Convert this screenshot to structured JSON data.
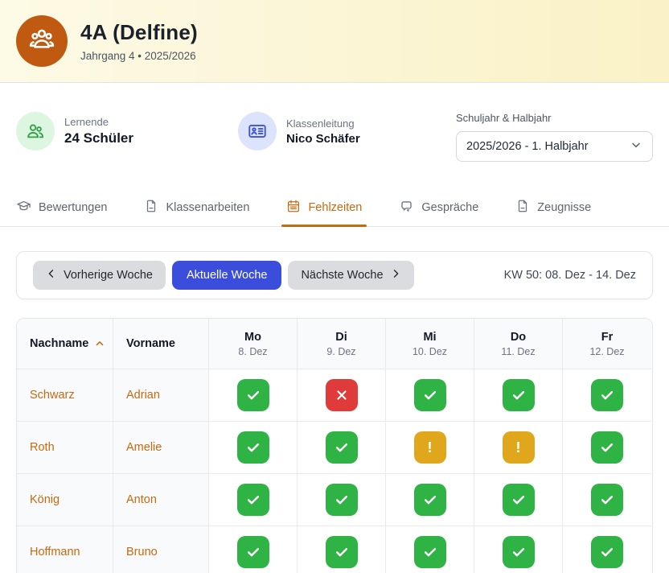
{
  "header": {
    "title": "4A (Delfine)",
    "subtitle": "Jahrgang 4 • 2025/2026"
  },
  "info": {
    "students": {
      "label": "Lernende",
      "value": "24 Schüler"
    },
    "teacher": {
      "label": "Klassenleitung",
      "value": "Nico Schäfer"
    },
    "term": {
      "label": "Schuljahr & Halbjahr",
      "selected": "2025/2026 - 1. Halbjahr"
    }
  },
  "tabs": [
    {
      "label": "Bewertungen",
      "icon": "graduation-cap-icon",
      "active": false
    },
    {
      "label": "Klassenarbeiten",
      "icon": "document-icon",
      "active": false
    },
    {
      "label": "Fehlzeiten",
      "icon": "calendar-icon",
      "active": true
    },
    {
      "label": "Gespräche",
      "icon": "chat-bubbles-icon",
      "active": false
    },
    {
      "label": "Zeugnisse",
      "icon": "certificate-icon",
      "active": false
    }
  ],
  "week_nav": {
    "prev_label": "Vorherige Woche",
    "current_label": "Aktuelle Woche",
    "next_label": "Nächste Woche",
    "range_label": "KW 50: 08. Dez - 14. Dez"
  },
  "attendance_table": {
    "columns": {
      "last_name": "Nachname",
      "first_name": "Vorname"
    },
    "sorted_by": "last_name_asc",
    "days": [
      {
        "name": "Mo",
        "date": "8. Dez"
      },
      {
        "name": "Di",
        "date": "9. Dez"
      },
      {
        "name": "Mi",
        "date": "10. Dez"
      },
      {
        "name": "Do",
        "date": "11. Dez"
      },
      {
        "name": "Fr",
        "date": "12. Dez"
      }
    ],
    "rows": [
      {
        "last_name": "Schwarz",
        "first_name": "Adrian",
        "statuses": [
          "present",
          "absent",
          "present",
          "present",
          "present"
        ]
      },
      {
        "last_name": "Roth",
        "first_name": "Amelie",
        "statuses": [
          "present",
          "present",
          "warning",
          "warning",
          "present"
        ]
      },
      {
        "last_name": "König",
        "first_name": "Anton",
        "statuses": [
          "present",
          "present",
          "present",
          "present",
          "present"
        ]
      },
      {
        "last_name": "Hoffmann",
        "first_name": "Bruno",
        "statuses": [
          "present",
          "present",
          "present",
          "present",
          "present"
        ]
      }
    ]
  },
  "colors": {
    "header_gradient_start": "#FDFAE6",
    "header_gradient_end": "#FAF1C6",
    "avatar_orange": "#C05A11",
    "accent_orange": "#C7690F",
    "current_week_blue": "#3B4EDB",
    "present_green": "#2FB344",
    "absent_red": "#E03B3B",
    "warning_yellow": "#E0A71C"
  },
  "icons": {
    "avatar": "group-icon",
    "students": "users-icon",
    "teacher": "id-card-icon",
    "term_select": "chevron-down-icon",
    "prev": "chevron-left-icon",
    "next": "chevron-right-icon",
    "sort": "chevron-up-icon",
    "status_present": "check-icon",
    "status_absent": "x-icon",
    "status_warning": "exclamation-icon"
  }
}
